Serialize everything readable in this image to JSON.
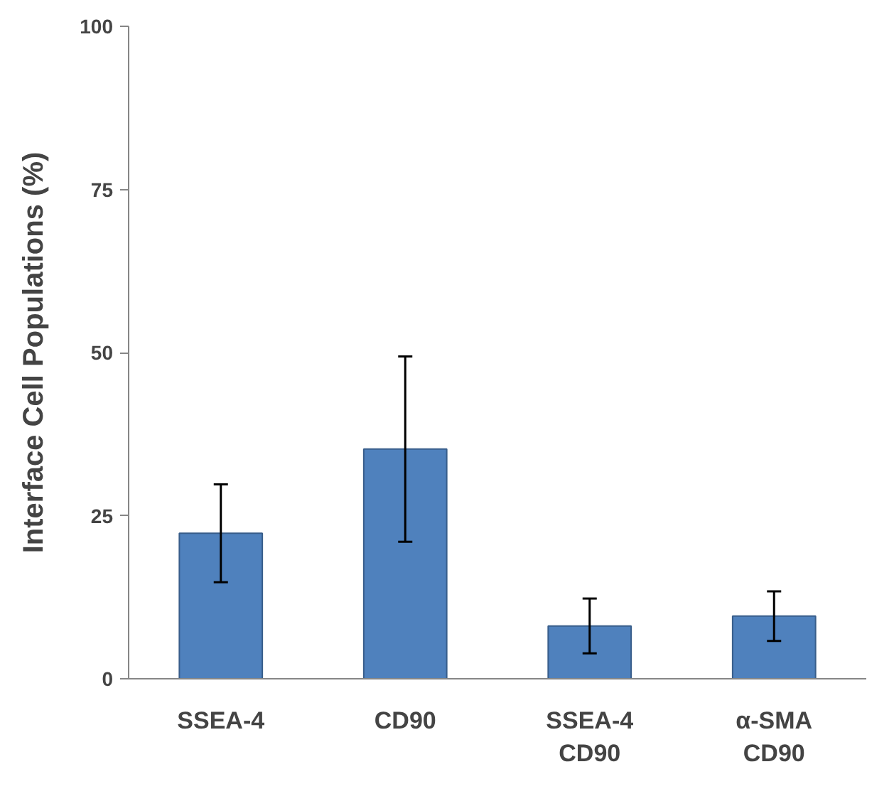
{
  "chart_data": {
    "type": "bar",
    "ylabel": "Interface Cell Populations (%)",
    "categories": [
      "SSEA-4",
      "CD90",
      "SSEA-4\nCD90",
      "α-SMA\nCD90"
    ],
    "values": [
      22.3,
      35.2,
      8.1,
      9.6
    ],
    "errors": [
      7.5,
      14.2,
      4.2,
      3.8
    ],
    "color": "#4f81bd",
    "ylim": [
      0,
      100
    ],
    "yticks": [
      0,
      25,
      50,
      75,
      100
    ],
    "grid": false
  }
}
